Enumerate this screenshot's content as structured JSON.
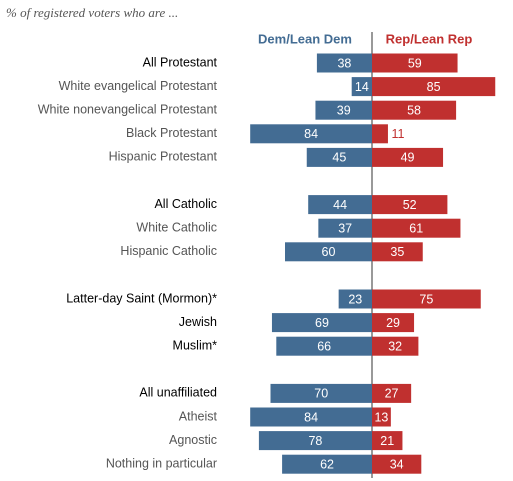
{
  "chart_data": {
    "type": "diverging_bar",
    "subtitle": "% of registered voters who are ...",
    "categories": [
      "All Protestant",
      "White evangelical Protestant",
      "White nonevangelical Protestant",
      "Black Protestant",
      "Hispanic Protestant",
      null,
      "All Catholic",
      "White Catholic",
      "Hispanic Catholic",
      null,
      "Latter-day Saint (Mormon)*",
      "Jewish",
      "Muslim*",
      null,
      "All unaffiliated",
      "Atheist",
      "Agnostic",
      "Nothing in particular"
    ],
    "emphasized": [
      0,
      6,
      10,
      11,
      12,
      14
    ],
    "series": [
      {
        "name": "Dem/Lean Dem",
        "color": "#436c93",
        "side": "left",
        "values": [
          38,
          14,
          39,
          84,
          45,
          null,
          44,
          37,
          60,
          null,
          23,
          69,
          66,
          null,
          70,
          84,
          78,
          62
        ]
      },
      {
        "name": "Rep/Lean Rep",
        "color": "#c0302f",
        "side": "right",
        "values": [
          59,
          85,
          58,
          11,
          49,
          null,
          52,
          61,
          35,
          null,
          75,
          29,
          32,
          null,
          27,
          13,
          21,
          34
        ]
      }
    ]
  }
}
